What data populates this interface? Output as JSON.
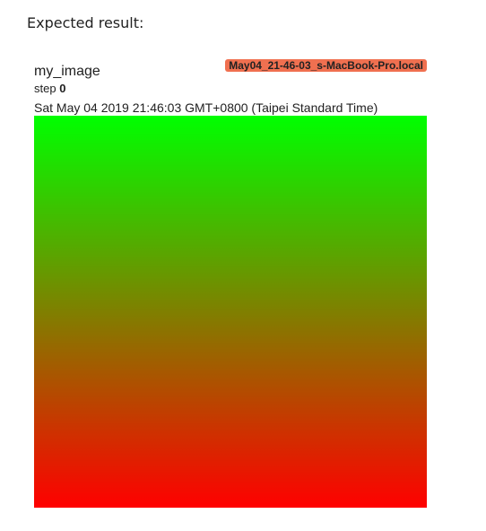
{
  "intro_text": "Expected result:",
  "card": {
    "run_name": "May04_21-46-03_s-MacBook-Pro.local",
    "tag_name": "my_image",
    "step_label": "step",
    "step_value": "0",
    "timestamp": "Sat May 04 2019 21:46:03 GMT+0800 (Taipei Standard Time)",
    "colors": {
      "run_badge": "#f07050",
      "gradient_top": "#00ff00",
      "gradient_bottom": "#ff0000"
    }
  }
}
